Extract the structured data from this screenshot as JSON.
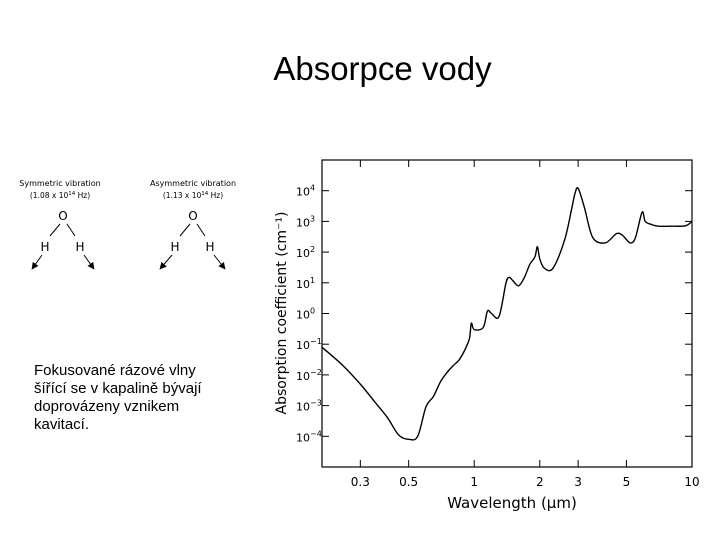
{
  "slide": {
    "title": "Absorpce vody",
    "description_lines": [
      "Fokusované rázové vlny",
      "šířící se v kapalině bývají",
      "doprovázeny vznikem",
      "kavitací."
    ]
  },
  "molecules": [
    {
      "label": "Symmetric vibration",
      "frequency": "(1.08 x 10",
      "exp": "14",
      "unit": " Hz)",
      "atoms": {
        "o": "O",
        "h1": "H",
        "h2": "H"
      }
    },
    {
      "label": "Asymmetric vibration",
      "frequency": "(1.13 x 10",
      "exp": "14",
      "unit": " Hz)",
      "atoms": {
        "o": "O",
        "h1": "H",
        "h2": "H"
      }
    }
  ],
  "chart_data": {
    "type": "line",
    "xlabel": "Wavelength (μm)",
    "ylabel": "Absorption coefficient (cm⁻¹)",
    "x_scale": "log",
    "y_scale": "log",
    "xlim": [
      0.2,
      10
    ],
    "ylim": [
      1e-05,
      100000
    ],
    "x_ticks": [
      {
        "value": 0.3,
        "label": "0.3"
      },
      {
        "value": 0.5,
        "label": "0.5"
      },
      {
        "value": 1,
        "label": "1"
      },
      {
        "value": 2,
        "label": "2"
      },
      {
        "value": 3,
        "label": "3"
      },
      {
        "value": 5,
        "label": "5"
      },
      {
        "value": 10,
        "label": "10"
      }
    ],
    "y_ticks": [
      {
        "value": 0.0001,
        "base": "10",
        "exp": "−4"
      },
      {
        "value": 0.001,
        "base": "10",
        "exp": "−3"
      },
      {
        "value": 0.01,
        "base": "10",
        "exp": "−2"
      },
      {
        "value": 0.1,
        "base": "10",
        "exp": "−1"
      },
      {
        "value": 1,
        "base": "10",
        "exp": "0"
      },
      {
        "value": 10,
        "base": "10",
        "exp": "1"
      },
      {
        "value": 100,
        "base": "10",
        "exp": "2"
      },
      {
        "value": 1000,
        "base": "10",
        "exp": "3"
      },
      {
        "value": 10000,
        "base": "10",
        "exp": "4"
      }
    ],
    "grid": false,
    "series": [
      {
        "x": [
          0.2,
          0.25,
          0.3,
          0.35,
          0.4,
          0.45,
          0.5,
          0.55,
          0.6,
          0.65,
          0.7,
          0.75,
          0.8,
          0.85,
          0.9,
          0.95,
          0.97,
          1.0,
          1.1,
          1.15,
          1.2,
          1.3,
          1.4,
          1.45,
          1.5,
          1.6,
          1.7,
          1.8,
          1.9,
          1.95,
          2.0,
          2.1,
          2.3,
          2.6,
          2.8,
          2.9,
          3.0,
          3.2,
          3.5,
          4.0,
          4.5,
          4.8,
          5.2,
          5.5,
          5.9,
          6.1,
          6.5,
          7.0,
          8.0,
          9.0,
          9.5,
          10.0
        ],
        "y": [
          0.08,
          0.02,
          0.005,
          0.0013,
          0.0004,
          0.00011,
          8e-05,
          0.0001,
          0.0009,
          0.002,
          0.006,
          0.012,
          0.02,
          0.03,
          0.06,
          0.15,
          0.48,
          0.3,
          0.35,
          1.2,
          1.0,
          0.8,
          10,
          15,
          12,
          8,
          15,
          40,
          70,
          150,
          60,
          30,
          30,
          250,
          2500,
          8000,
          12000,
          3000,
          300,
          200,
          400,
          350,
          200,
          300,
          2000,
          1000,
          800,
          700,
          700,
          700,
          750,
          1000
        ]
      }
    ]
  }
}
